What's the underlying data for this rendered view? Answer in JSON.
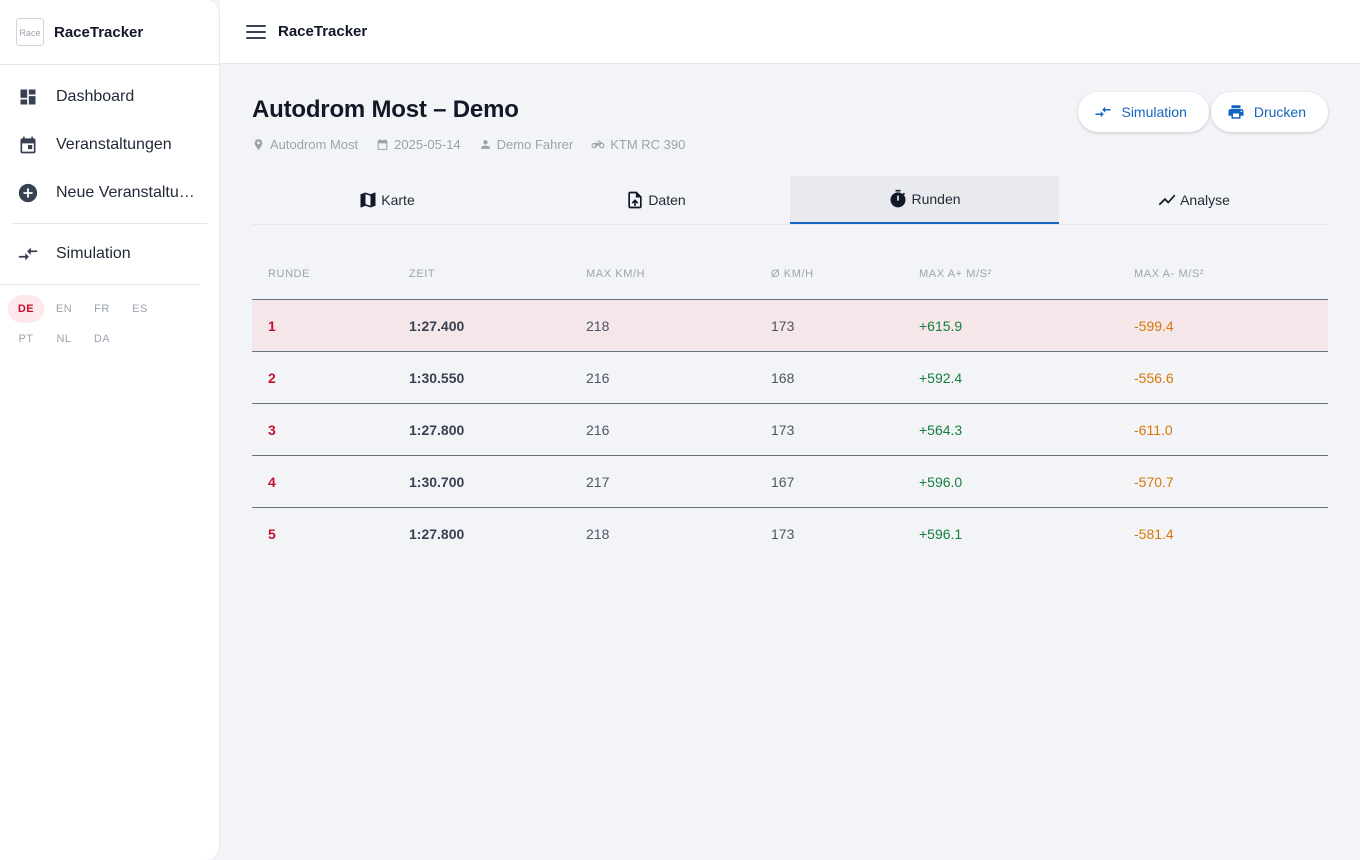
{
  "app": {
    "name": "RaceTracker",
    "logo_alt": "Race"
  },
  "sidebar": {
    "items": [
      {
        "label": "Dashboard",
        "icon": "dashboard-icon"
      },
      {
        "label": "Veranstaltungen",
        "icon": "calendar-icon"
      },
      {
        "label": "Neue Veranstaltung",
        "icon": "add-circle-icon"
      },
      {
        "label": "Simulation",
        "icon": "compare-arrows-icon"
      }
    ],
    "languages": [
      "DE",
      "EN",
      "FR",
      "ES",
      "PT",
      "NL",
      "DA"
    ],
    "active_language": "DE"
  },
  "topbar": {
    "title": "RaceTracker"
  },
  "page": {
    "title": "Autodrom Most – Demo",
    "meta": {
      "location": "Autodrom Most",
      "date": "2025-05-14",
      "driver": "Demo Fahrer",
      "vehicle": "KTM RC 390"
    },
    "actions": {
      "simulation_label": "Simulation",
      "print_label": "Drucken"
    }
  },
  "tabs": [
    {
      "label": "Karte",
      "icon": "map-icon"
    },
    {
      "label": "Daten",
      "icon": "file-upload-icon"
    },
    {
      "label": "Runden",
      "icon": "timer-icon",
      "active": true
    },
    {
      "label": "Analyse",
      "icon": "trending-up-icon"
    }
  ],
  "laps": {
    "headers": [
      "Runde",
      "Zeit",
      "Max km/h",
      "Ø km/h",
      "Max a+ m/s²",
      "Max a- m/s²"
    ],
    "rows": [
      {
        "runde": "1",
        "zeit": "1:27.400",
        "max_kmh": "218",
        "avg_kmh": "173",
        "max_a_plus": "+615.9",
        "max_a_minus": "-599.4"
      },
      {
        "runde": "2",
        "zeit": "1:30.550",
        "max_kmh": "216",
        "avg_kmh": "168",
        "max_a_plus": "+592.4",
        "max_a_minus": "-556.6"
      },
      {
        "runde": "3",
        "zeit": "1:27.800",
        "max_kmh": "216",
        "avg_kmh": "173",
        "max_a_plus": "+564.3",
        "max_a_minus": "-611.0"
      },
      {
        "runde": "4",
        "zeit": "1:30.700",
        "max_kmh": "217",
        "avg_kmh": "167",
        "max_a_plus": "+596.0",
        "max_a_minus": "-570.7"
      },
      {
        "runde": "5",
        "zeit": "1:27.800",
        "max_kmh": "218",
        "avg_kmh": "173",
        "max_a_plus": "+596.1",
        "max_a_minus": "-581.4"
      }
    ]
  },
  "colors": {
    "accent": "#1565c0",
    "best_lap_bg": "#f5e6ea",
    "lap_number": "#c8102e",
    "positive": "#15803d",
    "negative": "#d97706"
  }
}
